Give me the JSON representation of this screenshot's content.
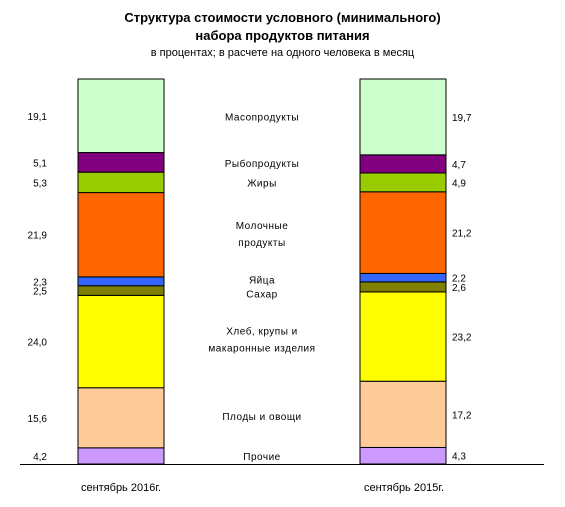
{
  "header": {
    "title_line1": "Структура стоимости условного (минимального)",
    "title_line2": "набора продуктов питания",
    "subtitle": "в процентах; в расчете на одного человека в месяц"
  },
  "chart_data": {
    "type": "bar",
    "stacked": true,
    "value_unit": "percent",
    "segment_order_bottom_to_top": [
      "Прочие",
      "Плоды и овощи",
      "Хлеб, крупы и макаронные изделия",
      "Сахар",
      "Яйца",
      "Молочные продукты",
      "Жиры",
      "Рыбопродукты",
      "Масопродукты"
    ],
    "category_labels": [
      {
        "key": "meat",
        "lines": [
          "Масопродукты"
        ]
      },
      {
        "key": "fish",
        "lines": [
          "Рыбопродукты"
        ]
      },
      {
        "key": "fats",
        "lines": [
          "Жиры"
        ]
      },
      {
        "key": "dairy",
        "lines": [
          "Молочные",
          "продукты"
        ]
      },
      {
        "key": "eggs",
        "lines": [
          "Яйца"
        ]
      },
      {
        "key": "sugar",
        "lines": [
          "Сахар"
        ]
      },
      {
        "key": "bread",
        "lines": [
          "Хлеб, крупы и",
          "макаронные изделия"
        ]
      },
      {
        "key": "veg",
        "lines": [
          "Плоды и овощи"
        ]
      },
      {
        "key": "other",
        "lines": [
          "Прочие"
        ]
      }
    ],
    "colors": {
      "other": "#cc99ff",
      "veg": "#ffcc99",
      "bread": "#ffff00",
      "sugar": "#808000",
      "eggs": "#3366ff",
      "dairy": "#ff6600",
      "fats": "#99cc00",
      "fish": "#800080",
      "meat": "#ccffcc"
    },
    "series": [
      {
        "name": "сентябрь 2016г.",
        "segments": [
          {
            "key": "other",
            "value": 4.2,
            "label": "4,2"
          },
          {
            "key": "veg",
            "value": 15.6,
            "label": "15,6"
          },
          {
            "key": "bread",
            "value": 24.0,
            "label": "24,0"
          },
          {
            "key": "sugar",
            "value": 2.5,
            "label": "2,5"
          },
          {
            "key": "eggs",
            "value": 2.3,
            "label": "2,3"
          },
          {
            "key": "dairy",
            "value": 21.9,
            "label": "21,9"
          },
          {
            "key": "fats",
            "value": 5.3,
            "label": "5,3"
          },
          {
            "key": "fish",
            "value": 5.1,
            "label": "5,1"
          },
          {
            "key": "meat",
            "value": 19.1,
            "label": "19,1"
          }
        ]
      },
      {
        "name": "сентябрь 2015г.",
        "segments": [
          {
            "key": "other",
            "value": 4.3,
            "label": "4,3"
          },
          {
            "key": "veg",
            "value": 17.2,
            "label": "17,2"
          },
          {
            "key": "bread",
            "value": 23.2,
            "label": "23,2"
          },
          {
            "key": "sugar",
            "value": 2.6,
            "label": "2,6"
          },
          {
            "key": "eggs",
            "value": 2.2,
            "label": "2,2"
          },
          {
            "key": "dairy",
            "value": 21.2,
            "label": "21,2"
          },
          {
            "key": "fats",
            "value": 4.9,
            "label": "4,9"
          },
          {
            "key": "fish",
            "value": 4.7,
            "label": "4,7"
          },
          {
            "key": "meat",
            "value": 19.7,
            "label": "19,7"
          }
        ]
      }
    ]
  }
}
